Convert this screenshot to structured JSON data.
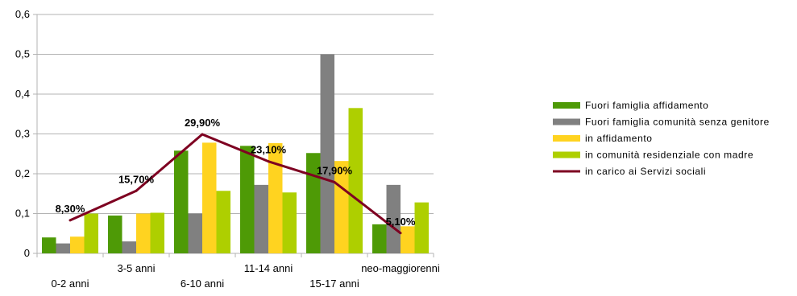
{
  "chart_data": {
    "type": "bar",
    "categories": [
      "0-2 anni",
      "3-5 anni",
      "6-10 anni",
      "11-14 anni",
      "15-17 anni",
      "neo-maggiorenni"
    ],
    "ylim": [
      0,
      0.6
    ],
    "yticks": [
      "0",
      "0,1",
      "0,2",
      "0,3",
      "0,4",
      "0,5",
      "0,6"
    ],
    "grid": "horizontal",
    "legend_position": "right",
    "series": [
      {
        "name": "Fuori famiglia affidamento",
        "kind": "bar",
        "color": "#4e9a06",
        "values": [
          0.04,
          0.095,
          0.258,
          0.27,
          0.252,
          0.073
        ]
      },
      {
        "name": "Fuori famiglia comunità senza genitore",
        "kind": "bar",
        "color": "#808080",
        "values": [
          0.025,
          0.03,
          0.1,
          0.172,
          0.5,
          0.172
        ]
      },
      {
        "name": "in affidamento",
        "kind": "bar",
        "color": "#ffd320",
        "values": [
          0.042,
          0.1,
          0.278,
          0.277,
          0.232,
          0.068
        ]
      },
      {
        "name": "in comunità residenziale con madre",
        "kind": "bar",
        "color": "#aecf00",
        "values": [
          0.1,
          0.102,
          0.157,
          0.153,
          0.365,
          0.128
        ]
      },
      {
        "name": "in carico ai Servizi sociali",
        "kind": "line",
        "color": "#7e0021",
        "values": [
          0.083,
          0.157,
          0.299,
          0.231,
          0.179,
          0.051
        ]
      }
    ],
    "data_labels": [
      "8,30%",
      "15,70%",
      "29,90%",
      "23,10%",
      "17,90%",
      "5,10%"
    ]
  }
}
